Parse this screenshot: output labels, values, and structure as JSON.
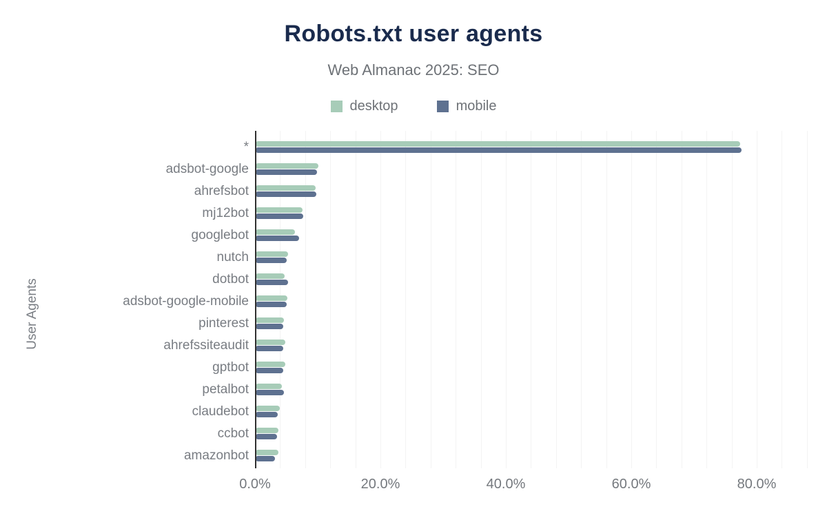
{
  "header": {
    "title": "Robots.txt user agents",
    "subtitle": "Web Almanac 2025: SEO"
  },
  "chart_data": {
    "type": "bar",
    "orientation": "horizontal",
    "title": "Robots.txt user agents",
    "subtitle": "Web Almanac 2025: SEO",
    "xlabel": "",
    "ylabel": "User Agents",
    "unit": "%",
    "xlim": [
      0,
      90
    ],
    "grid": true,
    "legend_position": "top",
    "x_tick_values": [
      0,
      20,
      40,
      60,
      80
    ],
    "x_tick_labels": [
      "0.0%",
      "20.0%",
      "40.0%",
      "60.0%",
      "80.0%"
    ],
    "categories": [
      "*",
      "adsbot-google",
      "ahrefsbot",
      "mj12bot",
      "googlebot",
      "nutch",
      "dotbot",
      "adsbot-google-mobile",
      "pinterest",
      "ahrefssiteaudit",
      "gptbot",
      "petalbot",
      "claudebot",
      "ccbot",
      "amazonbot"
    ],
    "series": [
      {
        "name": "desktop",
        "color": "#a7ccb8",
        "values": [
          77.1,
          9.9,
          9.5,
          7.4,
          6.2,
          5.1,
          4.5,
          4.9,
          4.4,
          4.6,
          4.6,
          4.1,
          3.7,
          3.5,
          3.5
        ]
      },
      {
        "name": "mobile",
        "color": "#5e7190",
        "values": [
          77.4,
          9.7,
          9.6,
          7.5,
          6.8,
          4.8,
          5.1,
          4.8,
          4.3,
          4.3,
          4.3,
          4.4,
          3.4,
          3.3,
          3.0
        ]
      }
    ],
    "colors": {
      "title": "#1a2b4d",
      "muted_text": "#6e7277",
      "axis_line": "#2f2f2f",
      "gridline": "#f3f3f3",
      "background": "#ffffff"
    }
  }
}
